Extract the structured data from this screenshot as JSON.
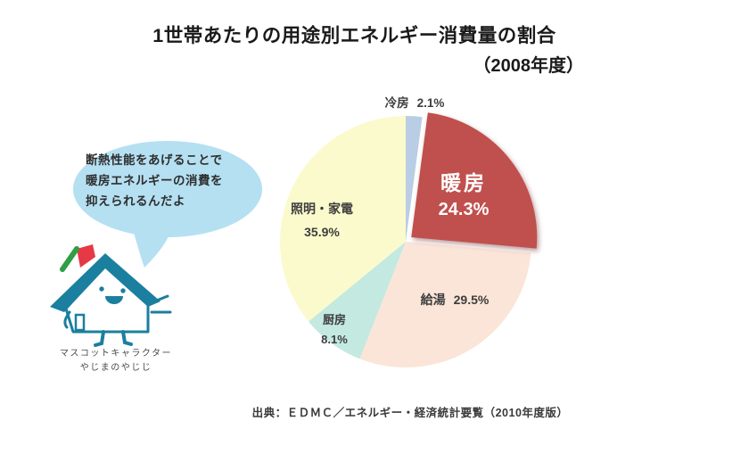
{
  "title": {
    "line1": "1世帯あたりの用途別エネルギー消費量の割合",
    "line2": "（2008年度）"
  },
  "speech_bubble": {
    "lines": [
      "断熱性能をあげることで",
      "暖房エネルギーの消費を",
      "抑えられるんだよ"
    ]
  },
  "mascot": {
    "caption_line1": "マスコットキャラクター",
    "caption_line2": "やじまのやじじ"
  },
  "chart_data": {
    "type": "pie",
    "title": "1世帯あたりの用途別エネルギー消費量の割合（2008年度）",
    "start_angle": "12-oclock",
    "direction": "clockwise",
    "legend": "none",
    "slices": [
      {
        "label": "冷房",
        "value": 2.1,
        "pct_label": "2.1%",
        "color": "#b9cde4",
        "exploded": false
      },
      {
        "label": "暖房",
        "value": 24.3,
        "pct_label": "24.3%",
        "color": "#c0504d",
        "exploded": true
      },
      {
        "label": "給湯",
        "value": 29.5,
        "pct_label": "29.5%",
        "color": "#fbe5d8",
        "exploded": false
      },
      {
        "label": "厨房",
        "value": 8.1,
        "pct_label": "8.1%",
        "color": "#c3e9e1",
        "exploded": false
      },
      {
        "label": "照明・家電",
        "value": 35.9,
        "pct_label": "35.9%",
        "color": "#fbfacd",
        "exploded": false
      }
    ]
  },
  "source": {
    "text": "出典：ＥＤＭＣ／エネルギー・経済統計要覧（2010年度版）"
  },
  "colors": {
    "title_text": "#1a1a1a",
    "label_text": "#3d3d3d",
    "accent_teal": "#1b7f9f",
    "melon_red": "#e63946",
    "melon_green": "#2f9e44",
    "bubble_blue": "#b5e0f2",
    "bubble_text": "#2e2e2e",
    "source_text": "#3a3a3a",
    "caption_text": "#4a4a4a",
    "pie_inner_label": "#ffffff"
  }
}
